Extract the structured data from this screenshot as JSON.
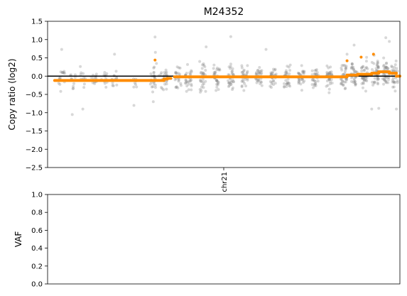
{
  "chart_data": [
    {
      "type": "scatter",
      "title": "M24352",
      "ylabel": "Copy ratio (log2)",
      "xlabel": "",
      "x_tick_labels": [
        "chr21"
      ],
      "ylim": [
        -2.5,
        1.5
      ],
      "y_ticks": [
        "1.5",
        "1.0",
        "0.5",
        "0.0",
        "−0.5",
        "−1.0",
        "−1.5",
        "−2.0",
        "−2.5"
      ],
      "y_tick_values": [
        1.5,
        1.0,
        0.5,
        0.0,
        -0.5,
        -1.0,
        -1.5,
        -2.0,
        -2.5
      ],
      "baseline": 0.0,
      "x_unit": "fraction of chr21 length",
      "grid": false,
      "point_color": "#7f7f7f",
      "segment_color": "#ff8c00",
      "point_clusters": [
        {
          "x": 0.04,
          "mean": -0.05,
          "spread": 0.25,
          "n": 14
        },
        {
          "x": 0.07,
          "mean": -0.12,
          "spread": 0.22,
          "n": 10
        },
        {
          "x": 0.1,
          "mean": -0.12,
          "spread": 0.3,
          "n": 10
        },
        {
          "x": 0.13,
          "mean": -0.1,
          "spread": 0.22,
          "n": 12
        },
        {
          "x": 0.16,
          "mean": -0.1,
          "spread": 0.22,
          "n": 12
        },
        {
          "x": 0.19,
          "mean": -0.05,
          "spread": 0.25,
          "n": 12
        },
        {
          "x": 0.245,
          "mean": -0.12,
          "spread": 0.15,
          "n": 8
        },
        {
          "x": 0.3,
          "mean": 0.0,
          "spread": 0.3,
          "n": 16
        },
        {
          "x": 0.31,
          "mean": -0.05,
          "spread": 0.25,
          "n": 10
        },
        {
          "x": 0.33,
          "mean": -0.05,
          "spread": 0.25,
          "n": 22
        },
        {
          "x": 0.37,
          "mean": -0.05,
          "spread": 0.25,
          "n": 25
        },
        {
          "x": 0.4,
          "mean": -0.05,
          "spread": 0.28,
          "n": 30
        },
        {
          "x": 0.44,
          "mean": -0.05,
          "spread": 0.28,
          "n": 30
        },
        {
          "x": 0.48,
          "mean": -0.05,
          "spread": 0.28,
          "n": 30
        },
        {
          "x": 0.52,
          "mean": -0.05,
          "spread": 0.28,
          "n": 30
        },
        {
          "x": 0.56,
          "mean": -0.05,
          "spread": 0.25,
          "n": 30
        },
        {
          "x": 0.6,
          "mean": -0.05,
          "spread": 0.25,
          "n": 30
        },
        {
          "x": 0.64,
          "mean": -0.05,
          "spread": 0.25,
          "n": 30
        },
        {
          "x": 0.68,
          "mean": -0.05,
          "spread": 0.25,
          "n": 30
        },
        {
          "x": 0.72,
          "mean": -0.05,
          "spread": 0.25,
          "n": 30
        },
        {
          "x": 0.76,
          "mean": -0.05,
          "spread": 0.25,
          "n": 30
        },
        {
          "x": 0.8,
          "mean": -0.05,
          "spread": 0.25,
          "n": 35
        },
        {
          "x": 0.84,
          "mean": 0.0,
          "spread": 0.28,
          "n": 35
        },
        {
          "x": 0.87,
          "mean": 0.05,
          "spread": 0.3,
          "n": 35
        },
        {
          "x": 0.9,
          "mean": 0.05,
          "spread": 0.3,
          "n": 40
        },
        {
          "x": 0.93,
          "mean": 0.1,
          "spread": 0.3,
          "n": 40
        },
        {
          "x": 0.96,
          "mean": 0.1,
          "spread": 0.3,
          "n": 40
        },
        {
          "x": 0.985,
          "mean": 0.05,
          "spread": 0.3,
          "n": 30
        }
      ],
      "outliers": [
        {
          "x": 0.04,
          "y": 0.73
        },
        {
          "x": 0.07,
          "y": -1.05
        },
        {
          "x": 0.1,
          "y": -0.9
        },
        {
          "x": 0.19,
          "y": 0.6
        },
        {
          "x": 0.245,
          "y": -0.8
        },
        {
          "x": 0.305,
          "y": 1.07
        },
        {
          "x": 0.306,
          "y": 0.65
        },
        {
          "x": 0.3,
          "y": -0.7
        },
        {
          "x": 0.45,
          "y": 0.8
        },
        {
          "x": 0.52,
          "y": 1.08
        },
        {
          "x": 0.62,
          "y": 0.73
        },
        {
          "x": 0.87,
          "y": 0.85
        },
        {
          "x": 0.96,
          "y": 1.05
        },
        {
          "x": 0.97,
          "y": 0.95
        },
        {
          "x": 0.99,
          "y": -0.9
        },
        {
          "x": 0.92,
          "y": -0.9
        },
        {
          "x": 0.94,
          "y": -0.88
        },
        {
          "x": 0.85,
          "y": 0.6
        }
      ],
      "segments": [
        {
          "x0": 0.02,
          "x1": 0.33,
          "y": -0.12
        },
        {
          "x0": 0.33,
          "x1": 0.34,
          "y": -0.08
        },
        {
          "x0": 0.34,
          "x1": 0.35,
          "y": -0.06
        },
        {
          "x0": 0.36,
          "x1": 0.85,
          "y": -0.02
        },
        {
          "x0": 0.85,
          "x1": 0.88,
          "y": 0.03
        },
        {
          "x0": 0.88,
          "x1": 0.92,
          "y": 0.05
        },
        {
          "x0": 0.92,
          "x1": 0.94,
          "y": 0.08
        },
        {
          "x0": 0.94,
          "x1": 0.97,
          "y": 0.12
        },
        {
          "x0": 0.97,
          "x1": 0.99,
          "y": 0.08
        },
        {
          "x0": 0.99,
          "x1": 1.0,
          "y": 0.0
        }
      ],
      "segment_markers": [
        {
          "x": 0.305,
          "y": 0.44
        },
        {
          "x": 0.85,
          "y": 0.42
        },
        {
          "x": 0.89,
          "y": 0.52
        },
        {
          "x": 0.925,
          "y": 0.6
        }
      ]
    },
    {
      "type": "scatter",
      "title": "",
      "ylabel": "VAF",
      "xlabel": "",
      "ylim": [
        0.0,
        1.0
      ],
      "y_ticks": [
        "1.0",
        "0.8",
        "0.6",
        "0.4",
        "0.2",
        "0.0"
      ],
      "y_tick_values": [
        1.0,
        0.8,
        0.6,
        0.4,
        0.2,
        0.0
      ],
      "points": [],
      "grid": false
    }
  ]
}
